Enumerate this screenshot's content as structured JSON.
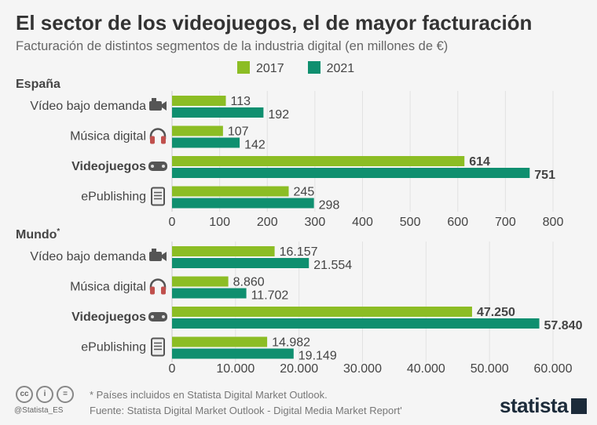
{
  "title": "El sector de los videojuegos, el de mayor facturación",
  "subtitle": "Facturación de distintos segmentos de la industria digital (en millones de €)",
  "colors": {
    "2017": "#8cbd24",
    "2021": "#0f8f6f"
  },
  "chart_data": [
    {
      "type": "bar",
      "orientation": "horizontal",
      "title": "España",
      "categories": [
        "Vídeo bajo demanda",
        "Música digital",
        "Videojuegos",
        "ePublishing"
      ],
      "icons": [
        "video-camera-icon",
        "headphones-icon",
        "gamepad-icon",
        "ebook-icon"
      ],
      "series": [
        {
          "name": "2017",
          "values": [
            113,
            107,
            614,
            245
          ],
          "labels": [
            "113",
            "107",
            "614",
            "245"
          ]
        },
        {
          "name": "2021",
          "values": [
            192,
            142,
            751,
            298
          ],
          "labels": [
            "192",
            "142",
            "751",
            "298"
          ]
        }
      ],
      "xlim": [
        0,
        800
      ],
      "ticks": [
        "0",
        "100",
        "200",
        "300",
        "400",
        "500",
        "600",
        "700",
        "800"
      ],
      "tick_values": [
        0,
        100,
        200,
        300,
        400,
        500,
        600,
        700,
        800
      ],
      "grid": true,
      "legend": "top",
      "highlight": "Videojuegos"
    },
    {
      "type": "bar",
      "orientation": "horizontal",
      "title": "Mundo",
      "title_note": "*",
      "categories": [
        "Vídeo bajo demanda",
        "Música digital",
        "Videojuegos",
        "ePublishing"
      ],
      "icons": [
        "video-camera-icon",
        "headphones-icon",
        "gamepad-icon",
        "ebook-icon"
      ],
      "series": [
        {
          "name": "2017",
          "values": [
            16157,
            8860,
            47250,
            14982
          ],
          "labels": [
            "16.157",
            "8.860",
            "47.250",
            "14.982"
          ]
        },
        {
          "name": "2021",
          "values": [
            21554,
            11702,
            57840,
            19149
          ],
          "labels": [
            "21.554",
            "11.702",
            "57.840",
            "19.149"
          ]
        }
      ],
      "xlim": [
        0,
        60000
      ],
      "ticks": [
        "0",
        "10.000",
        "20.000",
        "30.000",
        "40.000",
        "50.000",
        "60.000"
      ],
      "tick_values": [
        0,
        10000,
        20000,
        30000,
        40000,
        50000,
        60000
      ],
      "grid": true,
      "highlight": "Videojuegos"
    }
  ],
  "footer": {
    "note": "* Países incluidos en Statista Digital Market Outlook.",
    "source": "Fuente: Statista Digital Market Outlook - Digital Media Market Report'",
    "handle": "@Statista_ES",
    "logo": "statista"
  }
}
